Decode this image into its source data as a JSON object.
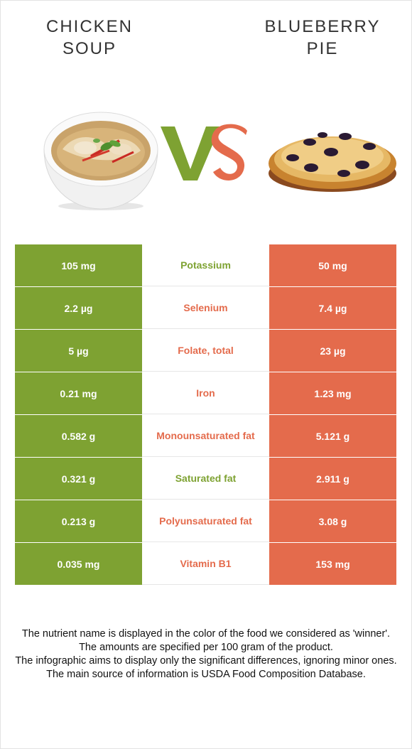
{
  "header": {
    "left_title_line1": "CHICKEN",
    "left_title_line2": "SOUP",
    "right_title_line1": "BLUEBERRY",
    "right_title_line2": "PIE",
    "vs_v": "V",
    "vs_s": "S"
  },
  "colors": {
    "left_food": "#7ea232",
    "right_food": "#e46b4c"
  },
  "rows": [
    {
      "left": "105 mg",
      "nutrient": "Potassium",
      "right": "50 mg",
      "winner": "left"
    },
    {
      "left": "2.2 µg",
      "nutrient": "Selenium",
      "right": "7.4 µg",
      "winner": "right"
    },
    {
      "left": "5 µg",
      "nutrient": "Folate, total",
      "right": "23 µg",
      "winner": "right"
    },
    {
      "left": "0.21 mg",
      "nutrient": "Iron",
      "right": "1.23 mg",
      "winner": "right"
    },
    {
      "left": "0.582 g",
      "nutrient": "Monounsaturated fat",
      "right": "5.121 g",
      "winner": "right"
    },
    {
      "left": "0.321 g",
      "nutrient": "Saturated fat",
      "right": "2.911 g",
      "winner": "left"
    },
    {
      "left": "0.213 g",
      "nutrient": "Polyunsaturated fat",
      "right": "3.08 g",
      "winner": "right"
    },
    {
      "left": "0.035 mg",
      "nutrient": "Vitamin B1",
      "right": "153 mg",
      "winner": "right"
    }
  ],
  "notes": [
    "The nutrient name is displayed in the color of the food we considered as 'winner'.",
    "The amounts are specified per 100 gram of the product.",
    "The infographic aims to display only the significant differences, ignoring minor ones.",
    "The main source of information is USDA Food Composition Database."
  ]
}
